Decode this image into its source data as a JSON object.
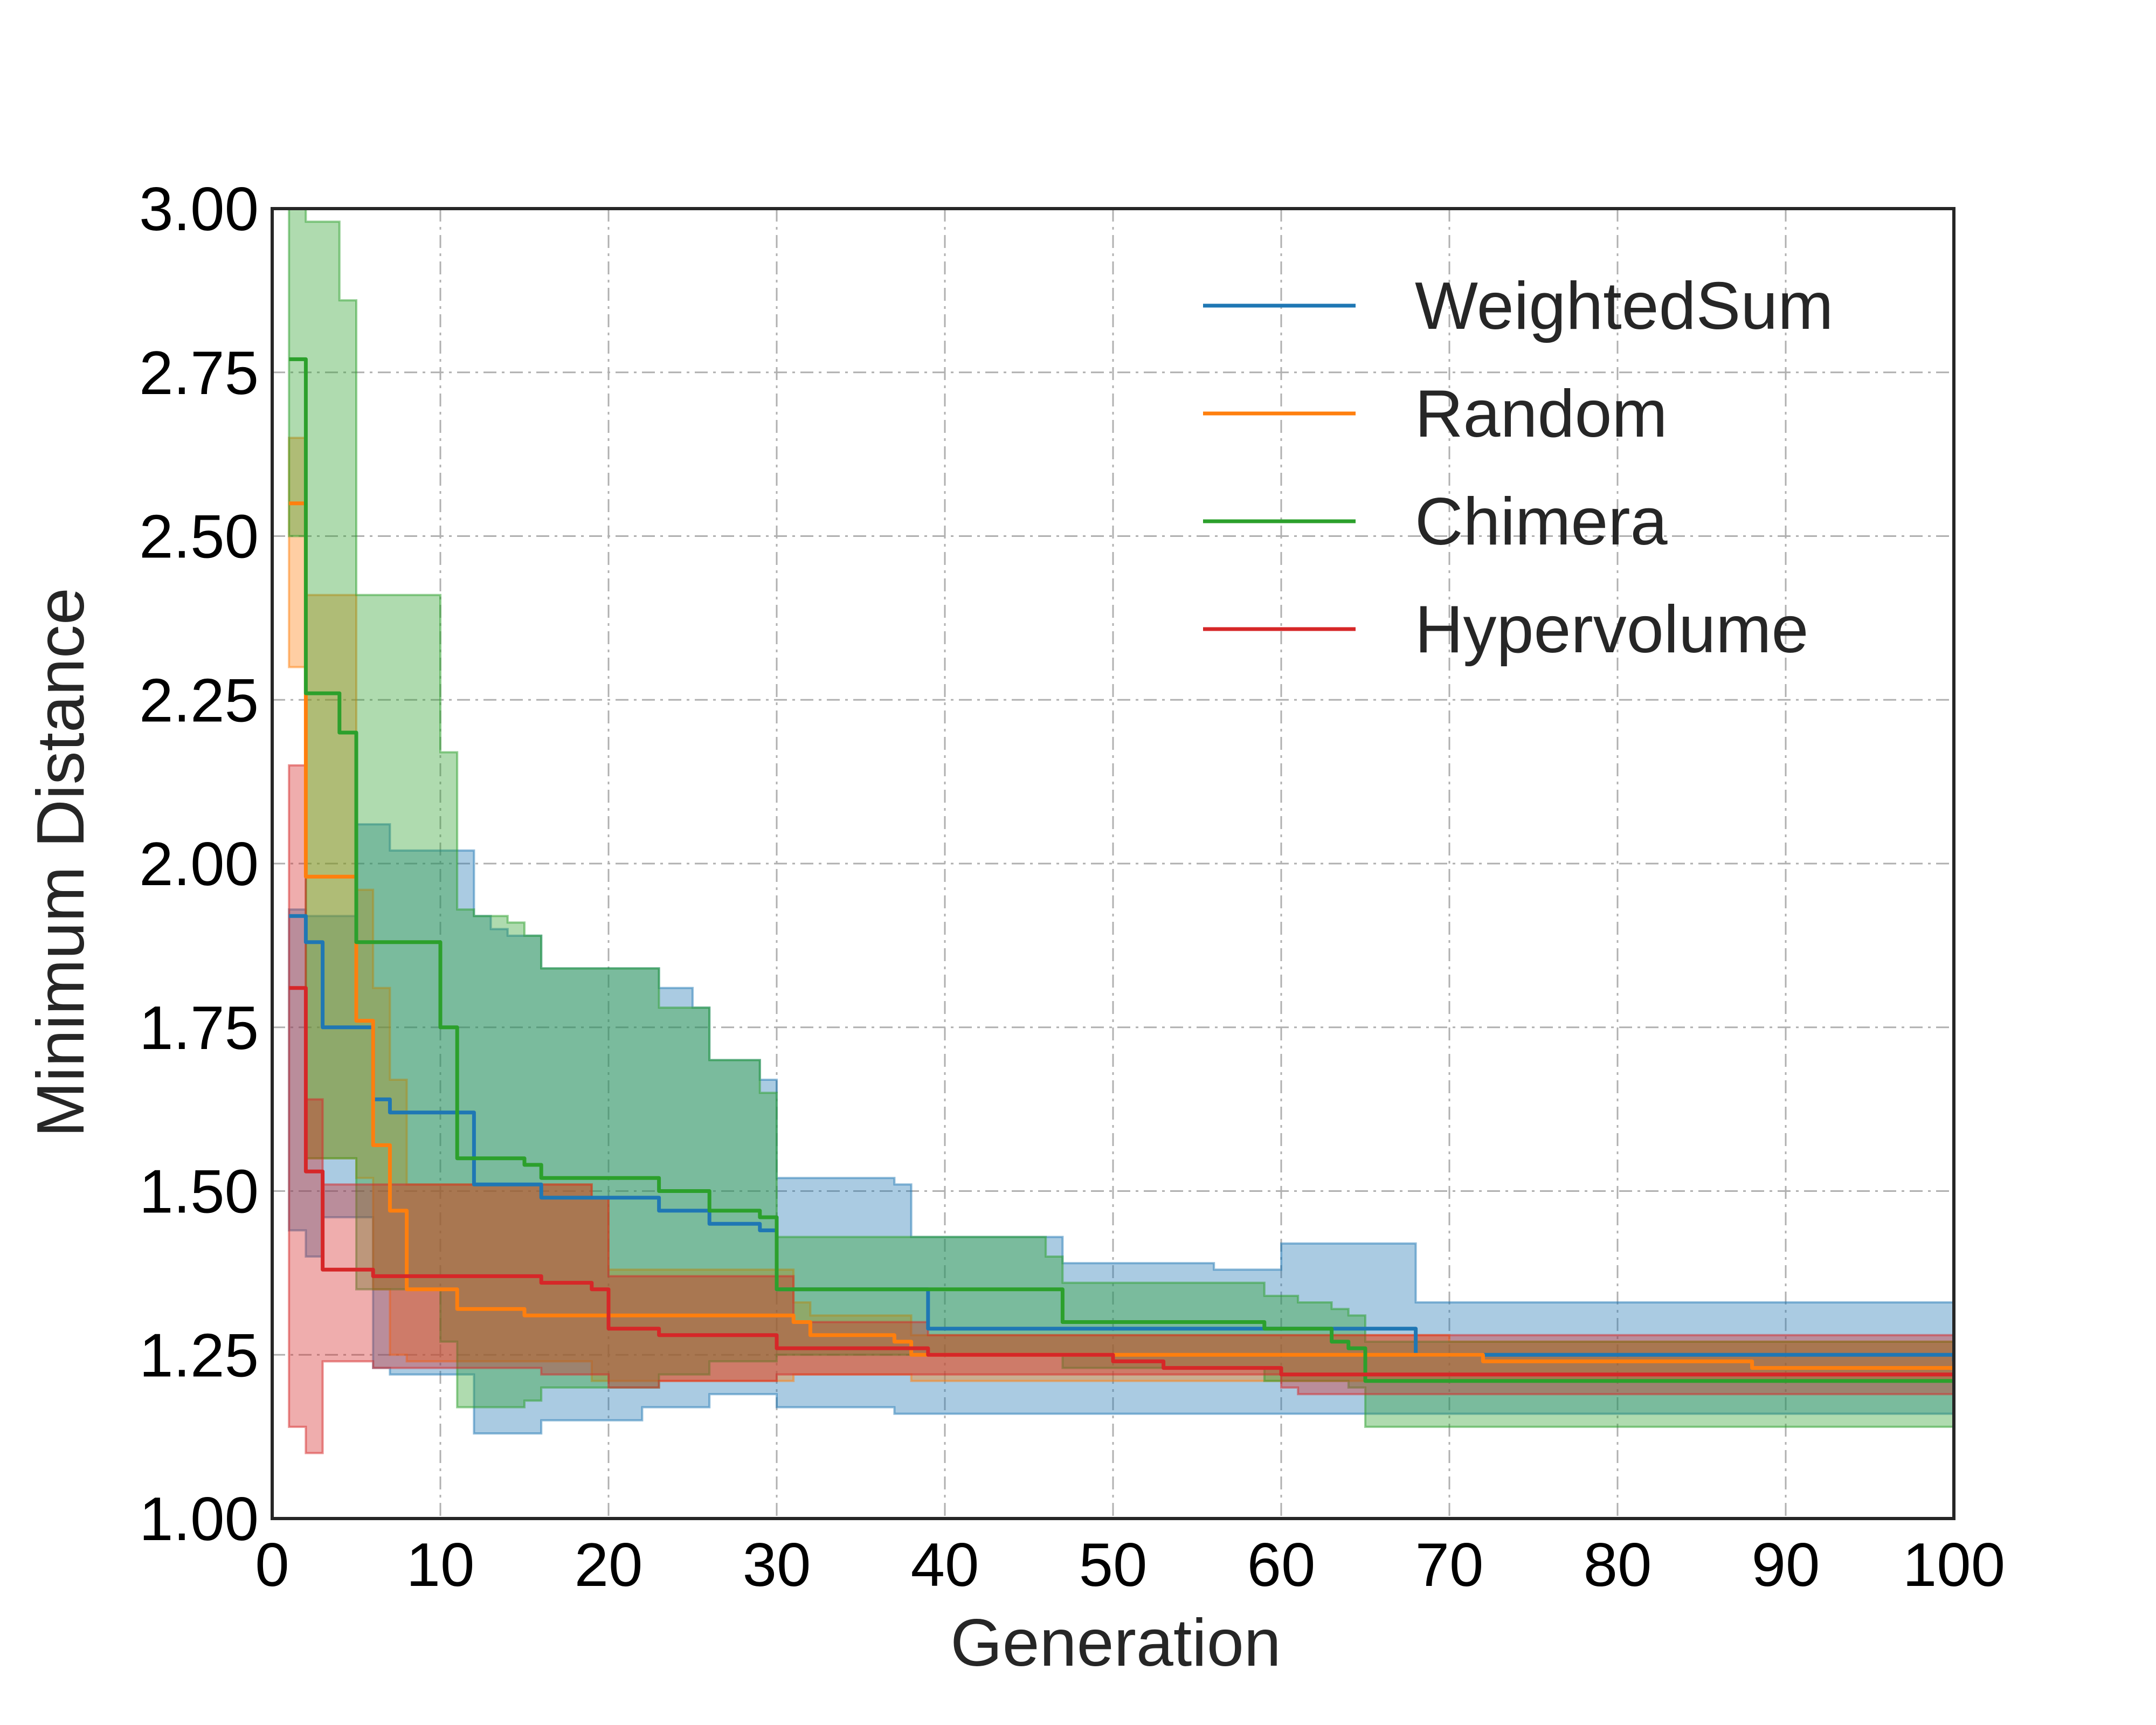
{
  "chart_data": {
    "type": "line",
    "title": "",
    "xlabel": "Generation",
    "ylabel": "Minimum Distance",
    "xlim": [
      0,
      100
    ],
    "ylim": [
      1.0,
      3.0
    ],
    "xticks": [
      "0",
      "10",
      "20",
      "30",
      "40",
      "50",
      "60",
      "70",
      "80",
      "90",
      "100"
    ],
    "yticks": [
      "1.00",
      "1.25",
      "1.50",
      "1.75",
      "2.00",
      "2.25",
      "2.50",
      "2.75",
      "3.00"
    ],
    "grid": true,
    "legend_position": "top-right",
    "series": [
      {
        "name": "WeightedSum",
        "color": "#1f77b4",
        "mean": [
          [
            1,
            1.92
          ],
          [
            2,
            1.88
          ],
          [
            3,
            1.75
          ],
          [
            5,
            1.75
          ],
          [
            6,
            1.64
          ],
          [
            7,
            1.62
          ],
          [
            11,
            1.62
          ],
          [
            12,
            1.51
          ],
          [
            16,
            1.49
          ],
          [
            23,
            1.47
          ],
          [
            26,
            1.45
          ],
          [
            28,
            1.45
          ],
          [
            29,
            1.44
          ],
          [
            30,
            1.35
          ],
          [
            37,
            1.35
          ],
          [
            39,
            1.29
          ],
          [
            67,
            1.29
          ],
          [
            68,
            1.25
          ],
          [
            100,
            1.24
          ]
        ],
        "upper": [
          [
            1,
            1.93
          ],
          [
            2,
            1.92
          ],
          [
            5,
            2.06
          ],
          [
            7,
            2.02
          ],
          [
            11,
            2.02
          ],
          [
            12,
            1.92
          ],
          [
            13,
            1.9
          ],
          [
            14,
            1.89
          ],
          [
            16,
            1.84
          ],
          [
            22,
            1.84
          ],
          [
            23,
            1.81
          ],
          [
            25,
            1.78
          ],
          [
            26,
            1.7
          ],
          [
            28,
            1.7
          ],
          [
            29,
            1.67
          ],
          [
            30,
            1.52
          ],
          [
            36,
            1.52
          ],
          [
            37,
            1.51
          ],
          [
            38,
            1.43
          ],
          [
            46,
            1.43
          ],
          [
            47,
            1.39
          ],
          [
            56,
            1.38
          ],
          [
            59,
            1.38
          ],
          [
            60,
            1.42
          ],
          [
            67,
            1.42
          ],
          [
            68,
            1.33
          ],
          [
            100,
            1.32
          ]
        ],
        "lower": [
          [
            1,
            1.44
          ],
          [
            2,
            1.4
          ],
          [
            3,
            1.46
          ],
          [
            5,
            1.46
          ],
          [
            6,
            1.23
          ],
          [
            7,
            1.22
          ],
          [
            11,
            1.22
          ],
          [
            12,
            1.13
          ],
          [
            15,
            1.13
          ],
          [
            16,
            1.15
          ],
          [
            18,
            1.15
          ],
          [
            22,
            1.17
          ],
          [
            25,
            1.17
          ],
          [
            26,
            1.19
          ],
          [
            30,
            1.17
          ],
          [
            36,
            1.17
          ],
          [
            37,
            1.16
          ],
          [
            100,
            1.16
          ]
        ]
      },
      {
        "name": "Random",
        "color": "#ff7f0e",
        "mean": [
          [
            1,
            2.55
          ],
          [
            2,
            1.98
          ],
          [
            4,
            1.98
          ],
          [
            5,
            1.76
          ],
          [
            6,
            1.57
          ],
          [
            7,
            1.47
          ],
          [
            8,
            1.35
          ],
          [
            10,
            1.35
          ],
          [
            11,
            1.32
          ],
          [
            14,
            1.32
          ],
          [
            15,
            1.31
          ],
          [
            19,
            1.31
          ],
          [
            20,
            1.31
          ],
          [
            30,
            1.31
          ],
          [
            31,
            1.3
          ],
          [
            32,
            1.28
          ],
          [
            37,
            1.27
          ],
          [
            38,
            1.25
          ],
          [
            68,
            1.25
          ],
          [
            72,
            1.24
          ],
          [
            87,
            1.24
          ],
          [
            88,
            1.23
          ],
          [
            100,
            1.23
          ]
        ],
        "upper": [
          [
            1,
            2.65
          ],
          [
            2,
            2.41
          ],
          [
            4,
            2.41
          ],
          [
            5,
            1.96
          ],
          [
            6,
            1.81
          ],
          [
            7,
            1.67
          ],
          [
            8,
            1.51
          ],
          [
            18,
            1.51
          ],
          [
            19,
            1.49
          ],
          [
            20,
            1.38
          ],
          [
            30,
            1.38
          ],
          [
            31,
            1.33
          ],
          [
            32,
            1.31
          ],
          [
            37,
            1.31
          ],
          [
            38,
            1.28
          ],
          [
            60,
            1.28
          ],
          [
            70,
            1.27
          ],
          [
            100,
            1.27
          ]
        ],
        "lower": [
          [
            1,
            2.3
          ],
          [
            2,
            1.55
          ],
          [
            4,
            1.55
          ],
          [
            5,
            1.52
          ],
          [
            6,
            1.35
          ],
          [
            7,
            1.25
          ],
          [
            8,
            1.24
          ],
          [
            18,
            1.24
          ],
          [
            19,
            1.21
          ],
          [
            20,
            1.21
          ],
          [
            31,
            1.22
          ],
          [
            37,
            1.22
          ],
          [
            38,
            1.21
          ],
          [
            100,
            1.21
          ]
        ]
      },
      {
        "name": "Chimera",
        "color": "#2ca02c",
        "mean": [
          [
            1,
            2.77
          ],
          [
            2,
            2.26
          ],
          [
            3,
            2.26
          ],
          [
            4,
            2.2
          ],
          [
            5,
            1.88
          ],
          [
            9,
            1.88
          ],
          [
            10,
            1.75
          ],
          [
            11,
            1.55
          ],
          [
            13,
            1.55
          ],
          [
            15,
            1.54
          ],
          [
            16,
            1.52
          ],
          [
            22,
            1.52
          ],
          [
            23,
            1.5
          ],
          [
            25,
            1.5
          ],
          [
            26,
            1.47
          ],
          [
            28,
            1.47
          ],
          [
            29,
            1.46
          ],
          [
            30,
            1.35
          ],
          [
            46,
            1.35
          ],
          [
            47,
            1.3
          ],
          [
            58,
            1.3
          ],
          [
            59,
            1.29
          ],
          [
            62,
            1.29
          ],
          [
            63,
            1.27
          ],
          [
            64,
            1.26
          ],
          [
            65,
            1.21
          ],
          [
            100,
            1.21
          ]
        ],
        "upper": [
          [
            1,
            3.05
          ],
          [
            2,
            2.98
          ],
          [
            3,
            2.98
          ],
          [
            4,
            2.86
          ],
          [
            5,
            2.41
          ],
          [
            9,
            2.41
          ],
          [
            10,
            2.17
          ],
          [
            11,
            1.93
          ],
          [
            12,
            1.92
          ],
          [
            13,
            1.92
          ],
          [
            14,
            1.91
          ],
          [
            15,
            1.89
          ],
          [
            16,
            1.84
          ],
          [
            22,
            1.84
          ],
          [
            23,
            1.78
          ],
          [
            25,
            1.78
          ],
          [
            26,
            1.7
          ],
          [
            28,
            1.7
          ],
          [
            29,
            1.65
          ],
          [
            30,
            1.43
          ],
          [
            45,
            1.43
          ],
          [
            46,
            1.4
          ],
          [
            47,
            1.36
          ],
          [
            58,
            1.36
          ],
          [
            59,
            1.34
          ],
          [
            60,
            1.34
          ],
          [
            61,
            1.33
          ],
          [
            63,
            1.32
          ],
          [
            64,
            1.31
          ],
          [
            65,
            1.27
          ],
          [
            100,
            1.27
          ]
        ],
        "lower": [
          [
            1,
            2.5
          ],
          [
            2,
            1.55
          ],
          [
            3,
            1.55
          ],
          [
            5,
            1.35
          ],
          [
            6,
            1.35
          ],
          [
            10,
            1.27
          ],
          [
            11,
            1.17
          ],
          [
            14,
            1.17
          ],
          [
            15,
            1.18
          ],
          [
            16,
            1.2
          ],
          [
            22,
            1.2
          ],
          [
            23,
            1.22
          ],
          [
            25,
            1.22
          ],
          [
            26,
            1.24
          ],
          [
            30,
            1.25
          ],
          [
            46,
            1.25
          ],
          [
            47,
            1.23
          ],
          [
            58,
            1.23
          ],
          [
            59,
            1.21
          ],
          [
            62,
            1.21
          ],
          [
            64,
            1.2
          ],
          [
            65,
            1.14
          ],
          [
            100,
            1.14
          ]
        ]
      },
      {
        "name": "Hypervolume",
        "color": "#d62728",
        "mean": [
          [
            1,
            1.81
          ],
          [
            2,
            1.53
          ],
          [
            3,
            1.38
          ],
          [
            5,
            1.38
          ],
          [
            6,
            1.37
          ],
          [
            15,
            1.37
          ],
          [
            16,
            1.36
          ],
          [
            18,
            1.36
          ],
          [
            19,
            1.35
          ],
          [
            20,
            1.29
          ],
          [
            22,
            1.29
          ],
          [
            23,
            1.28
          ],
          [
            29,
            1.28
          ],
          [
            30,
            1.26
          ],
          [
            38,
            1.26
          ],
          [
            39,
            1.25
          ],
          [
            49,
            1.25
          ],
          [
            50,
            1.24
          ],
          [
            52,
            1.24
          ],
          [
            53,
            1.23
          ],
          [
            59,
            1.23
          ],
          [
            60,
            1.22
          ],
          [
            100,
            1.22
          ]
        ],
        "upper": [
          [
            1,
            2.15
          ],
          [
            2,
            1.64
          ],
          [
            3,
            1.51
          ],
          [
            18,
            1.51
          ],
          [
            19,
            1.49
          ],
          [
            20,
            1.37
          ],
          [
            30,
            1.37
          ],
          [
            31,
            1.3
          ],
          [
            38,
            1.3
          ],
          [
            39,
            1.28
          ],
          [
            100,
            1.28
          ]
        ],
        "lower": [
          [
            1,
            1.14
          ],
          [
            2,
            1.1
          ],
          [
            3,
            1.24
          ],
          [
            5,
            1.24
          ],
          [
            6,
            1.23
          ],
          [
            15,
            1.23
          ],
          [
            16,
            1.22
          ],
          [
            20,
            1.2
          ],
          [
            22,
            1.2
          ],
          [
            23,
            1.21
          ],
          [
            29,
            1.21
          ],
          [
            30,
            1.22
          ],
          [
            60,
            1.2
          ],
          [
            61,
            1.19
          ],
          [
            100,
            1.19
          ]
        ]
      }
    ]
  }
}
